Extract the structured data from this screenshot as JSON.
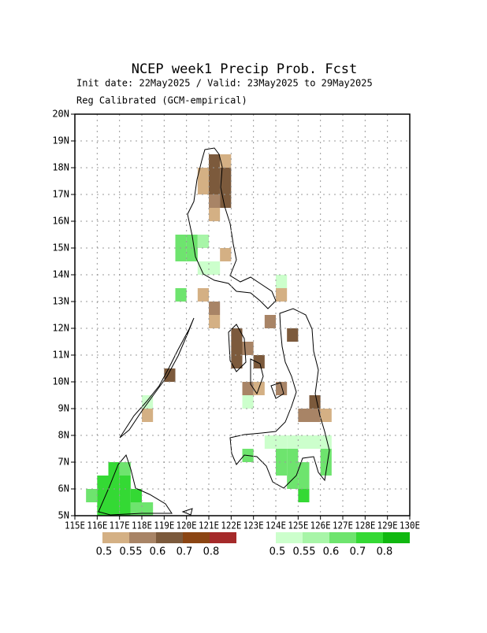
{
  "chart_data": {
    "type": "heatmap",
    "title": "NCEP week1 Precip Prob. Fcst",
    "subtitle": "Init date: 22May2025 / Valid: 23May2025 to 29May2025",
    "subtitle2": "Reg Calibrated (GCM-empirical)",
    "xlim": [
      115,
      130
    ],
    "ylim": [
      5,
      20
    ],
    "xticks": [
      {
        "value": 115,
        "label": "115E"
      },
      {
        "value": 116,
        "label": "116E"
      },
      {
        "value": 117,
        "label": "117E"
      },
      {
        "value": 118,
        "label": "118E"
      },
      {
        "value": 119,
        "label": "119E"
      },
      {
        "value": 120,
        "label": "120E"
      },
      {
        "value": 121,
        "label": "121E"
      },
      {
        "value": 122,
        "label": "122E"
      },
      {
        "value": 123,
        "label": "123E"
      },
      {
        "value": 124,
        "label": "124E"
      },
      {
        "value": 125,
        "label": "125E"
      },
      {
        "value": 126,
        "label": "126E"
      },
      {
        "value": 127,
        "label": "127E"
      },
      {
        "value": 128,
        "label": "128E"
      },
      {
        "value": 129,
        "label": "129E"
      },
      {
        "value": 130,
        "label": "130E"
      }
    ],
    "yticks": [
      {
        "value": 5,
        "label": "5N"
      },
      {
        "value": 6,
        "label": "6N"
      },
      {
        "value": 7,
        "label": "7N"
      },
      {
        "value": 8,
        "label": "8N"
      },
      {
        "value": 9,
        "label": "9N"
      },
      {
        "value": 10,
        "label": "10N"
      },
      {
        "value": 11,
        "label": "11N"
      },
      {
        "value": 12,
        "label": "12N"
      },
      {
        "value": 13,
        "label": "13N"
      },
      {
        "value": 14,
        "label": "14N"
      },
      {
        "value": 15,
        "label": "15N"
      },
      {
        "value": 16,
        "label": "16N"
      },
      {
        "value": 17,
        "label": "17N"
      },
      {
        "value": 18,
        "label": "18N"
      },
      {
        "value": 19,
        "label": "19N"
      },
      {
        "value": 20,
        "label": "20N"
      }
    ],
    "grid": true,
    "legend": {
      "levels": [
        0.5,
        0.55,
        0.6,
        0.7,
        0.8
      ],
      "below_colors": [
        "#d4b084",
        "#a88466",
        "#7c5a3c",
        "#8b4513",
        "#a52a2a"
      ],
      "above_colors": [
        "#ccffcc",
        "#a8f5a8",
        "#6ee46e",
        "#34d934",
        "#10b810"
      ]
    },
    "below": [
      [
        120.5,
        17.5,
        0.5
      ],
      [
        121,
        17.5,
        0.6
      ],
      [
        121,
        18,
        0.6
      ],
      [
        121.5,
        18,
        0.5
      ],
      [
        121.5,
        17.5,
        0.6
      ],
      [
        121,
        17,
        0.6
      ],
      [
        121.5,
        17,
        0.6
      ],
      [
        121,
        16.5,
        0.55
      ],
      [
        121.5,
        16.5,
        0.6
      ],
      [
        120.5,
        17,
        0.5
      ],
      [
        121,
        16,
        0.5
      ],
      [
        120.5,
        13,
        0.5
      ],
      [
        121,
        12.5,
        0.55
      ],
      [
        121,
        12,
        0.5
      ],
      [
        122,
        11.5,
        0.6
      ],
      [
        122,
        11,
        0.6
      ],
      [
        122,
        10.5,
        0.6
      ],
      [
        122.5,
        11,
        0.55
      ],
      [
        123,
        10.5,
        0.6
      ],
      [
        122.5,
        9.5,
        0.55
      ],
      [
        119,
        10,
        0.6
      ],
      [
        118,
        8.5,
        0.5
      ],
      [
        121.5,
        14.5,
        0.5
      ],
      [
        123.5,
        12,
        0.55
      ],
      [
        124.5,
        11.5,
        0.6
      ],
      [
        125,
        8.5,
        0.55
      ],
      [
        125.5,
        8.5,
        0.55
      ],
      [
        125.5,
        9,
        0.6
      ],
      [
        126,
        8.5,
        0.5
      ],
      [
        124,
        9.5,
        0.55
      ],
      [
        123,
        9.5,
        0.5
      ],
      [
        124,
        13,
        0.5
      ]
    ],
    "above": [
      [
        115.5,
        5.5,
        0.6
      ],
      [
        116,
        5,
        0.7
      ],
      [
        116,
        5.5,
        0.7
      ],
      [
        116,
        6,
        0.7
      ],
      [
        116.5,
        5,
        0.7
      ],
      [
        116.5,
        5.5,
        0.7
      ],
      [
        116.5,
        6,
        0.7
      ],
      [
        116.5,
        6.5,
        0.7
      ],
      [
        117,
        5,
        0.7
      ],
      [
        117,
        5.5,
        0.7
      ],
      [
        117,
        6,
        0.7
      ],
      [
        117,
        6.5,
        0.6
      ],
      [
        117.5,
        5.5,
        0.7
      ],
      [
        117.5,
        5,
        0.6
      ],
      [
        118,
        5,
        0.6
      ],
      [
        119.5,
        15,
        0.6
      ],
      [
        119.5,
        14.5,
        0.6
      ],
      [
        120,
        15,
        0.6
      ],
      [
        120,
        14.5,
        0.6
      ],
      [
        120.5,
        15,
        0.55
      ],
      [
        120.5,
        14,
        0.5
      ],
      [
        119.5,
        13,
        0.6
      ],
      [
        121,
        14,
        0.5
      ],
      [
        124,
        13.5,
        0.5
      ],
      [
        123.5,
        7.5,
        0.5
      ],
      [
        124,
        7.5,
        0.5
      ],
      [
        124.5,
        7.5,
        0.5
      ],
      [
        125,
        7.5,
        0.5
      ],
      [
        125.5,
        7.5,
        0.5
      ],
      [
        126,
        7.5,
        0.5
      ],
      [
        122.5,
        7,
        0.6
      ],
      [
        124,
        7,
        0.6
      ],
      [
        124,
        6.5,
        0.6
      ],
      [
        124.5,
        7,
        0.6
      ],
      [
        124.5,
        6.5,
        0.6
      ],
      [
        124.5,
        6,
        0.6
      ],
      [
        125,
        6.5,
        0.6
      ],
      [
        125,
        6,
        0.6
      ],
      [
        125,
        5.5,
        0.7
      ],
      [
        126,
        7,
        0.6
      ],
      [
        126,
        6.5,
        0.6
      ],
      [
        122.5,
        9,
        0.5
      ],
      [
        118,
        9,
        0.5
      ]
    ]
  }
}
